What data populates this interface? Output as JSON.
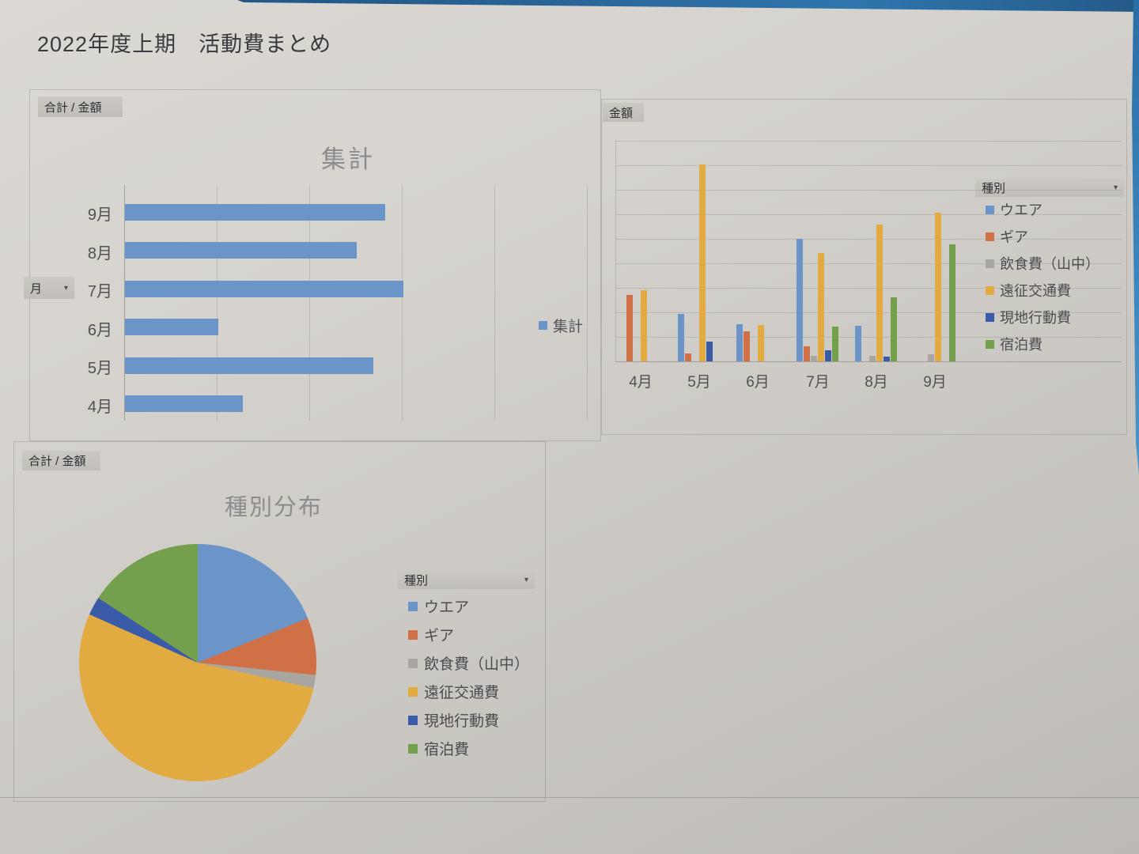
{
  "page": {
    "title": "2022年度上期　活動費まとめ"
  },
  "palette": {
    "wear_blue": "#6b95c9",
    "gear_orange": "#cf7046",
    "food_gray": "#a9a6a2",
    "transport_yellow": "#e2ab41",
    "local_darkblue": "#3a5ca8",
    "lodging_green": "#74a04d"
  },
  "chart_data": [
    {
      "id": "summary-bar",
      "type": "bar",
      "orientation": "horizontal",
      "title": "集計",
      "value_button": "合計 / 金額",
      "axis_filter_button": "月",
      "legend_label": "集計",
      "legend_position": "right",
      "grid": true,
      "categories": [
        "9月",
        "8月",
        "7月",
        "6月",
        "5月",
        "4月"
      ],
      "values": [
        2.81,
        2.5,
        3.01,
        1.01,
        2.68,
        1.27
      ],
      "value_unit": "gridline units (numeric axis labels not visible in print)",
      "xlim": [
        0,
        5
      ],
      "bar_color": "#6b95c9"
    },
    {
      "id": "monthly-by-type",
      "type": "bar",
      "orientation": "vertical",
      "value_button": "金額",
      "legend_title": "種別",
      "legend_position": "right",
      "grid": true,
      "categories": [
        "4月",
        "5月",
        "6月",
        "7月",
        "8月",
        "9月"
      ],
      "series": [
        {
          "name": "ウエア",
          "color": "#6b95c9",
          "values": [
            0,
            1.94,
            1.53,
            5.0,
            1.45,
            0
          ]
        },
        {
          "name": "ギア",
          "color": "#cf7046",
          "values": [
            2.7,
            0.32,
            1.24,
            0.61,
            0,
            0
          ]
        },
        {
          "name": "飲食費（山中）",
          "color": "#a9a6a2",
          "values": [
            0,
            0,
            0,
            0.24,
            0.23,
            0.3
          ]
        },
        {
          "name": "遠征交通費",
          "color": "#e2ab41",
          "values": [
            2.9,
            8.03,
            1.48,
            4.43,
            5.58,
            6.06
          ]
        },
        {
          "name": "現地行動費",
          "color": "#3a5ca8",
          "values": [
            0,
            0.81,
            0,
            0.45,
            0.19,
            0
          ]
        },
        {
          "name": "宿泊費",
          "color": "#74a04d",
          "values": [
            0,
            0,
            0,
            1.43,
            2.61,
            4.77
          ]
        }
      ],
      "value_unit": "gridline units (numeric axis labels not visible in print)",
      "ylim": [
        0,
        9
      ]
    },
    {
      "id": "type-pie",
      "type": "pie",
      "title": "種別分布",
      "value_button": "合計 / 金額",
      "legend_title": "種別",
      "legend_position": "right",
      "slices": [
        {
          "name": "ウエア",
          "color": "#6b95c9",
          "degrees": 68,
          "percent_est": 18.9
        },
        {
          "name": "ギア",
          "color": "#cf7046",
          "degrees": 28,
          "percent_est": 7.8
        },
        {
          "name": "飲食費（山中）",
          "color": "#a9a6a2",
          "degrees": 6.5,
          "percent_est": 1.8
        },
        {
          "name": "遠征交通費",
          "color": "#e2ab41",
          "degrees": 191.5,
          "percent_est": 53.2
        },
        {
          "name": "現地行動費",
          "color": "#3a5ca8",
          "degrees": 9,
          "percent_est": 2.5
        },
        {
          "name": "宿泊費",
          "color": "#74a04d",
          "degrees": 57,
          "percent_est": 15.8
        }
      ]
    }
  ]
}
